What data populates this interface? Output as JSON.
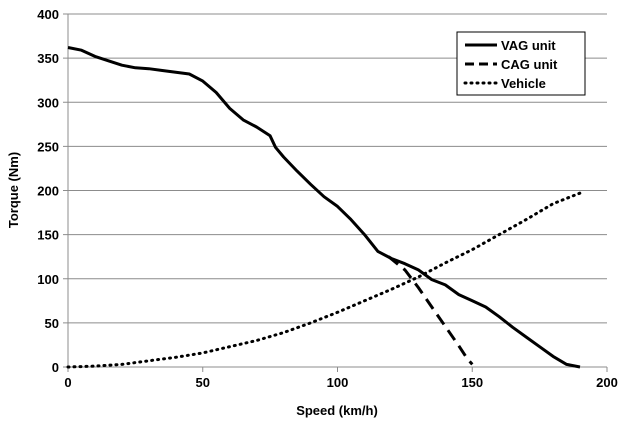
{
  "chart_data": {
    "type": "line",
    "title": "",
    "xlabel": "Speed (km/h)",
    "ylabel": "Torque (Nm)",
    "xlim": [
      0,
      200
    ],
    "ylim": [
      0,
      400
    ],
    "xticks": [
      "0",
      "50",
      "100",
      "150",
      "200"
    ],
    "yticks": [
      "0",
      "50",
      "100",
      "150",
      "200",
      "250",
      "300",
      "350",
      "400"
    ],
    "grid": "horizontal",
    "legend_position": "top-right",
    "series": [
      {
        "name": "VAG unit",
        "style": "solid",
        "color": "#000000",
        "x": [
          0,
          5,
          10,
          15,
          20,
          25,
          30,
          35,
          40,
          45,
          50,
          55,
          60,
          65,
          70,
          75,
          77,
          80,
          85,
          90,
          95,
          100,
          105,
          110,
          115,
          120,
          125,
          130,
          135,
          140,
          145,
          150,
          155,
          160,
          165,
          170,
          175,
          180,
          185,
          190
        ],
        "y": [
          362,
          359,
          352,
          347,
          342,
          339,
          338,
          336,
          334,
          332,
          324,
          311,
          293,
          280,
          272,
          262,
          249,
          238,
          222,
          207,
          193,
          182,
          167,
          150,
          131,
          123,
          117,
          110,
          99,
          93,
          82,
          75,
          68,
          57,
          45,
          34,
          23,
          12,
          3,
          0
        ]
      },
      {
        "name": "CAG unit",
        "style": "dashed",
        "color": "#000000",
        "x": [
          119,
          125,
          130,
          135,
          140,
          145,
          148,
          150
        ],
        "y": [
          125,
          110,
          90,
          68,
          46,
          24,
          10,
          3
        ]
      },
      {
        "name": "Vehicle",
        "style": "dotted",
        "color": "#000000",
        "x": [
          0,
          10,
          20,
          30,
          40,
          50,
          60,
          70,
          80,
          90,
          100,
          110,
          120,
          130,
          140,
          150,
          160,
          170,
          180,
          190
        ],
        "y": [
          0,
          1,
          3,
          7,
          11,
          16,
          23,
          30,
          39,
          50,
          62,
          75,
          88,
          102,
          118,
          133,
          150,
          167,
          185,
          197
        ]
      }
    ]
  }
}
